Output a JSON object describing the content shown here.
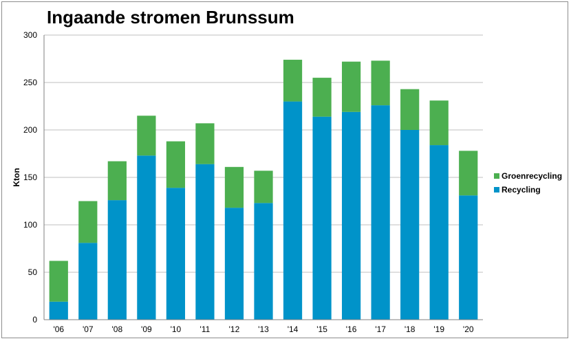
{
  "chart_data": {
    "type": "bar",
    "stacked": true,
    "title": "Ingaande stromen Brunssum",
    "ylabel": "Kton",
    "xlabel": "",
    "ylim": [
      0,
      300
    ],
    "yticks": [
      0,
      50,
      100,
      150,
      200,
      250,
      300
    ],
    "grid": true,
    "legend_position": "right",
    "categories": [
      "'06",
      "'07",
      "'08",
      "'09",
      "'10",
      "'11",
      "'12",
      "'13",
      "'14",
      "'15",
      "'16",
      "'17",
      "'18",
      "'19",
      "'20"
    ],
    "series": [
      {
        "name": "Recycling",
        "color": "#0093c9",
        "values": [
          19,
          81,
          126,
          173,
          139,
          164,
          118,
          123,
          230,
          214,
          219,
          226,
          200,
          184,
          131
        ]
      },
      {
        "name": "Groenrecycling",
        "color": "#4caf50",
        "values": [
          43,
          44,
          41,
          42,
          49,
          43,
          43,
          34,
          44,
          41,
          53,
          47,
          43,
          47,
          47
        ]
      }
    ],
    "legend_order": [
      "Groenrecycling",
      "Recycling"
    ]
  }
}
